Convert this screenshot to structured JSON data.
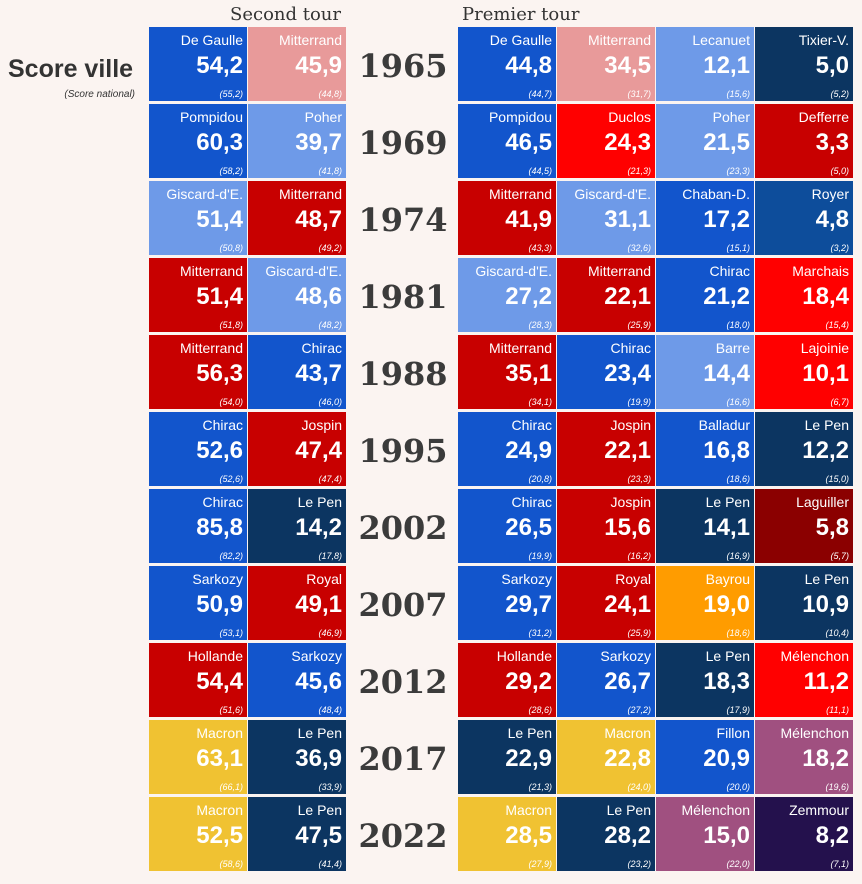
{
  "headers": {
    "second": "Second tour",
    "first": "Premier tour"
  },
  "legend": {
    "title": "Score ville",
    "subtitle": "(Score national)"
  },
  "colors": {
    "gaulliste": "#1255cc",
    "lightblue": "#6e9ae8",
    "pink": "#e89a9a",
    "red_ps": "#c80000",
    "red_pc": "#ff0000",
    "darkred": "#8b0000",
    "navy": "#0c3561",
    "royalblue": "#0d4d9b",
    "orange": "#ff9c00",
    "yellow": "#f0c232",
    "purple": "#a05080",
    "darkpurple": "#24114d"
  },
  "chart_data": {
    "type": "table",
    "title": "Score ville (Score national)",
    "columns": [
      "Second tour",
      "Premier tour"
    ],
    "rows": [
      {
        "year": "1965",
        "second": [
          {
            "name": "De Gaulle",
            "score": "54,2",
            "nat": "(55,2)",
            "color": "gaulliste"
          },
          {
            "name": "Mitterrand",
            "score": "45,9",
            "nat": "(44,8)",
            "color": "pink"
          }
        ],
        "first": [
          {
            "name": "De Gaulle",
            "score": "44,8",
            "nat": "(44,7)",
            "color": "gaulliste"
          },
          {
            "name": "Mitterrand",
            "score": "34,5",
            "nat": "(31,7)",
            "color": "pink"
          },
          {
            "name": "Lecanuet",
            "score": "12,1",
            "nat": "(15,6)",
            "color": "lightblue"
          },
          {
            "name": "Tixier-V.",
            "score": "5,0",
            "nat": "(5,2)",
            "color": "navy"
          }
        ]
      },
      {
        "year": "1969",
        "second": [
          {
            "name": "Pompidou",
            "score": "60,3",
            "nat": "(58,2)",
            "color": "gaulliste"
          },
          {
            "name": "Poher",
            "score": "39,7",
            "nat": "(41,8)",
            "color": "lightblue"
          }
        ],
        "first": [
          {
            "name": "Pompidou",
            "score": "46,5",
            "nat": "(44,5)",
            "color": "gaulliste"
          },
          {
            "name": "Duclos",
            "score": "24,3",
            "nat": "(21,3)",
            "color": "red_pc"
          },
          {
            "name": "Poher",
            "score": "21,5",
            "nat": "(23,3)",
            "color": "lightblue"
          },
          {
            "name": "Defferre",
            "score": "3,3",
            "nat": "(5,0)",
            "color": "red_ps"
          }
        ]
      },
      {
        "year": "1974",
        "second": [
          {
            "name": "Giscard-d'E.",
            "score": "51,4",
            "nat": "(50,8)",
            "color": "lightblue"
          },
          {
            "name": "Mitterrand",
            "score": "48,7",
            "nat": "(49,2)",
            "color": "red_ps"
          }
        ],
        "first": [
          {
            "name": "Mitterrand",
            "score": "41,9",
            "nat": "(43,3)",
            "color": "red_ps"
          },
          {
            "name": "Giscard-d'E.",
            "score": "31,1",
            "nat": "(32,6)",
            "color": "lightblue"
          },
          {
            "name": "Chaban-D.",
            "score": "17,2",
            "nat": "(15,1)",
            "color": "gaulliste"
          },
          {
            "name": "Royer",
            "score": "4,8",
            "nat": "(3,2)",
            "color": "royalblue"
          }
        ]
      },
      {
        "year": "1981",
        "second": [
          {
            "name": "Mitterrand",
            "score": "51,4",
            "nat": "(51,8)",
            "color": "red_ps"
          },
          {
            "name": "Giscard-d'E.",
            "score": "48,6",
            "nat": "(48,2)",
            "color": "lightblue"
          }
        ],
        "first": [
          {
            "name": "Giscard-d'E.",
            "score": "27,2",
            "nat": "(28,3)",
            "color": "lightblue"
          },
          {
            "name": "Mitterrand",
            "score": "22,1",
            "nat": "(25,9)",
            "color": "red_ps"
          },
          {
            "name": "Chirac",
            "score": "21,2",
            "nat": "(18,0)",
            "color": "gaulliste"
          },
          {
            "name": "Marchais",
            "score": "18,4",
            "nat": "(15,4)",
            "color": "red_pc"
          }
        ]
      },
      {
        "year": "1988",
        "second": [
          {
            "name": "Mitterrand",
            "score": "56,3",
            "nat": "(54,0)",
            "color": "red_ps"
          },
          {
            "name": "Chirac",
            "score": "43,7",
            "nat": "(46,0)",
            "color": "gaulliste"
          }
        ],
        "first": [
          {
            "name": "Mitterrand",
            "score": "35,1",
            "nat": "(34,1)",
            "color": "red_ps"
          },
          {
            "name": "Chirac",
            "score": "23,4",
            "nat": "(19,9)",
            "color": "gaulliste"
          },
          {
            "name": "Barre",
            "score": "14,4",
            "nat": "(16,6)",
            "color": "lightblue"
          },
          {
            "name": "Lajoinie",
            "score": "10,1",
            "nat": "(6,7)",
            "color": "red_pc"
          }
        ]
      },
      {
        "year": "1995",
        "second": [
          {
            "name": "Chirac",
            "score": "52,6",
            "nat": "(52,6)",
            "color": "gaulliste"
          },
          {
            "name": "Jospin",
            "score": "47,4",
            "nat": "(47,4)",
            "color": "red_ps"
          }
        ],
        "first": [
          {
            "name": "Chirac",
            "score": "24,9",
            "nat": "(20,8)",
            "color": "gaulliste"
          },
          {
            "name": "Jospin",
            "score": "22,1",
            "nat": "(23,3)",
            "color": "red_ps"
          },
          {
            "name": "Balladur",
            "score": "16,8",
            "nat": "(18,6)",
            "color": "gaulliste"
          },
          {
            "name": "Le Pen",
            "score": "12,2",
            "nat": "(15,0)",
            "color": "navy"
          }
        ]
      },
      {
        "year": "2002",
        "second": [
          {
            "name": "Chirac",
            "score": "85,8",
            "nat": "(82,2)",
            "color": "gaulliste"
          },
          {
            "name": "Le Pen",
            "score": "14,2",
            "nat": "(17,8)",
            "color": "navy"
          }
        ],
        "first": [
          {
            "name": "Chirac",
            "score": "26,5",
            "nat": "(19,9)",
            "color": "gaulliste"
          },
          {
            "name": "Jospin",
            "score": "15,6",
            "nat": "(16,2)",
            "color": "red_ps"
          },
          {
            "name": "Le Pen",
            "score": "14,1",
            "nat": "(16,9)",
            "color": "navy"
          },
          {
            "name": "Laguiller",
            "score": "5,8",
            "nat": "(5,7)",
            "color": "darkred"
          }
        ]
      },
      {
        "year": "2007",
        "second": [
          {
            "name": "Sarkozy",
            "score": "50,9",
            "nat": "(53,1)",
            "color": "gaulliste"
          },
          {
            "name": "Royal",
            "score": "49,1",
            "nat": "(46,9)",
            "color": "red_ps"
          }
        ],
        "first": [
          {
            "name": "Sarkozy",
            "score": "29,7",
            "nat": "(31,2)",
            "color": "gaulliste"
          },
          {
            "name": "Royal",
            "score": "24,1",
            "nat": "(25,9)",
            "color": "red_ps"
          },
          {
            "name": "Bayrou",
            "score": "19,0",
            "nat": "(18,6)",
            "color": "orange"
          },
          {
            "name": "Le Pen",
            "score": "10,9",
            "nat": "(10,4)",
            "color": "navy"
          }
        ]
      },
      {
        "year": "2012",
        "second": [
          {
            "name": "Hollande",
            "score": "54,4",
            "nat": "(51,6)",
            "color": "red_ps"
          },
          {
            "name": "Sarkozy",
            "score": "45,6",
            "nat": "(48,4)",
            "color": "gaulliste"
          }
        ],
        "first": [
          {
            "name": "Hollande",
            "score": "29,2",
            "nat": "(28,6)",
            "color": "red_ps"
          },
          {
            "name": "Sarkozy",
            "score": "26,7",
            "nat": "(27,2)",
            "color": "gaulliste"
          },
          {
            "name": "Le Pen",
            "score": "18,3",
            "nat": "(17,9)",
            "color": "navy"
          },
          {
            "name": "Mélenchon",
            "score": "11,2",
            "nat": "(11,1)",
            "color": "red_pc"
          }
        ]
      },
      {
        "year": "2017",
        "second": [
          {
            "name": "Macron",
            "score": "63,1",
            "nat": "(66,1)",
            "color": "yellow"
          },
          {
            "name": "Le Pen",
            "score": "36,9",
            "nat": "(33,9)",
            "color": "navy"
          }
        ],
        "first": [
          {
            "name": "Le Pen",
            "score": "22,9",
            "nat": "(21,3)",
            "color": "navy"
          },
          {
            "name": "Macron",
            "score": "22,8",
            "nat": "(24,0)",
            "color": "yellow"
          },
          {
            "name": "Fillon",
            "score": "20,9",
            "nat": "(20,0)",
            "color": "gaulliste"
          },
          {
            "name": "Mélenchon",
            "score": "18,2",
            "nat": "(19,6)",
            "color": "purple"
          }
        ]
      },
      {
        "year": "2022",
        "second": [
          {
            "name": "Macron",
            "score": "52,5",
            "nat": "(58,6)",
            "color": "yellow"
          },
          {
            "name": "Le Pen",
            "score": "47,5",
            "nat": "(41,4)",
            "color": "navy"
          }
        ],
        "first": [
          {
            "name": "Macron",
            "score": "28,5",
            "nat": "(27,9)",
            "color": "yellow"
          },
          {
            "name": "Le Pen",
            "score": "28,2",
            "nat": "(23,2)",
            "color": "navy"
          },
          {
            "name": "Mélenchon",
            "score": "15,0",
            "nat": "(22,0)",
            "color": "purple"
          },
          {
            "name": "Zemmour",
            "score": "8,2",
            "nat": "(7,1)",
            "color": "darkpurple"
          }
        ]
      }
    ]
  }
}
